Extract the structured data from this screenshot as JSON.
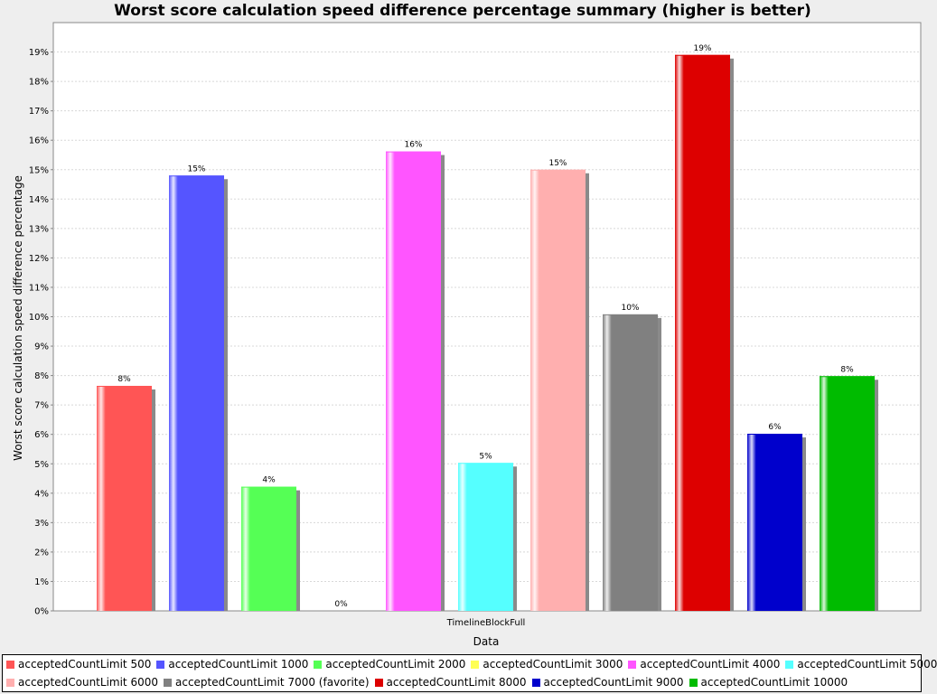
{
  "chart_data": {
    "type": "bar",
    "title": "Worst score calculation speed difference percentage summary (higher is better)",
    "xlabel": "Data",
    "ylabel": "Worst score calculation speed difference percentage",
    "categories": [
      "TimelineBlockFull"
    ],
    "ylim": [
      0,
      20
    ],
    "yticks": [
      "0%",
      "1%",
      "2%",
      "3%",
      "4%",
      "5%",
      "6%",
      "7%",
      "8%",
      "9%",
      "10%",
      "11%",
      "12%",
      "13%",
      "14%",
      "15%",
      "16%",
      "17%",
      "18%",
      "19%"
    ],
    "grid": true,
    "legend_position": "bottom",
    "series": [
      {
        "name": "acceptedCountLimit 500",
        "value": 7.65,
        "label": "8%",
        "color": "#ff5555"
      },
      {
        "name": "acceptedCountLimit 1000",
        "value": 14.8,
        "label": "15%",
        "color": "#5555ff"
      },
      {
        "name": "acceptedCountLimit 2000",
        "value": 4.22,
        "label": "4%",
        "color": "#55ff55"
      },
      {
        "name": "acceptedCountLimit 3000",
        "value": 0,
        "label": "0%",
        "color": "#ffff55"
      },
      {
        "name": "acceptedCountLimit 4000",
        "value": 15.62,
        "label": "16%",
        "color": "#ff55ff"
      },
      {
        "name": "acceptedCountLimit 5000",
        "value": 5.03,
        "label": "5%",
        "color": "#55ffff"
      },
      {
        "name": "acceptedCountLimit 6000",
        "value": 15.0,
        "label": "15%",
        "color": "#ffafaf"
      },
      {
        "name": "acceptedCountLimit 7000 (favorite)",
        "value": 10.08,
        "label": "10%",
        "color": "#808080"
      },
      {
        "name": "acceptedCountLimit 8000",
        "value": 18.9,
        "label": "19%",
        "color": "#dd0000"
      },
      {
        "name": "acceptedCountLimit 9000",
        "value": 6.02,
        "label": "6%",
        "color": "#0000cc"
      },
      {
        "name": "acceptedCountLimit 10000",
        "value": 7.98,
        "label": "8%",
        "color": "#00bb00"
      }
    ]
  }
}
